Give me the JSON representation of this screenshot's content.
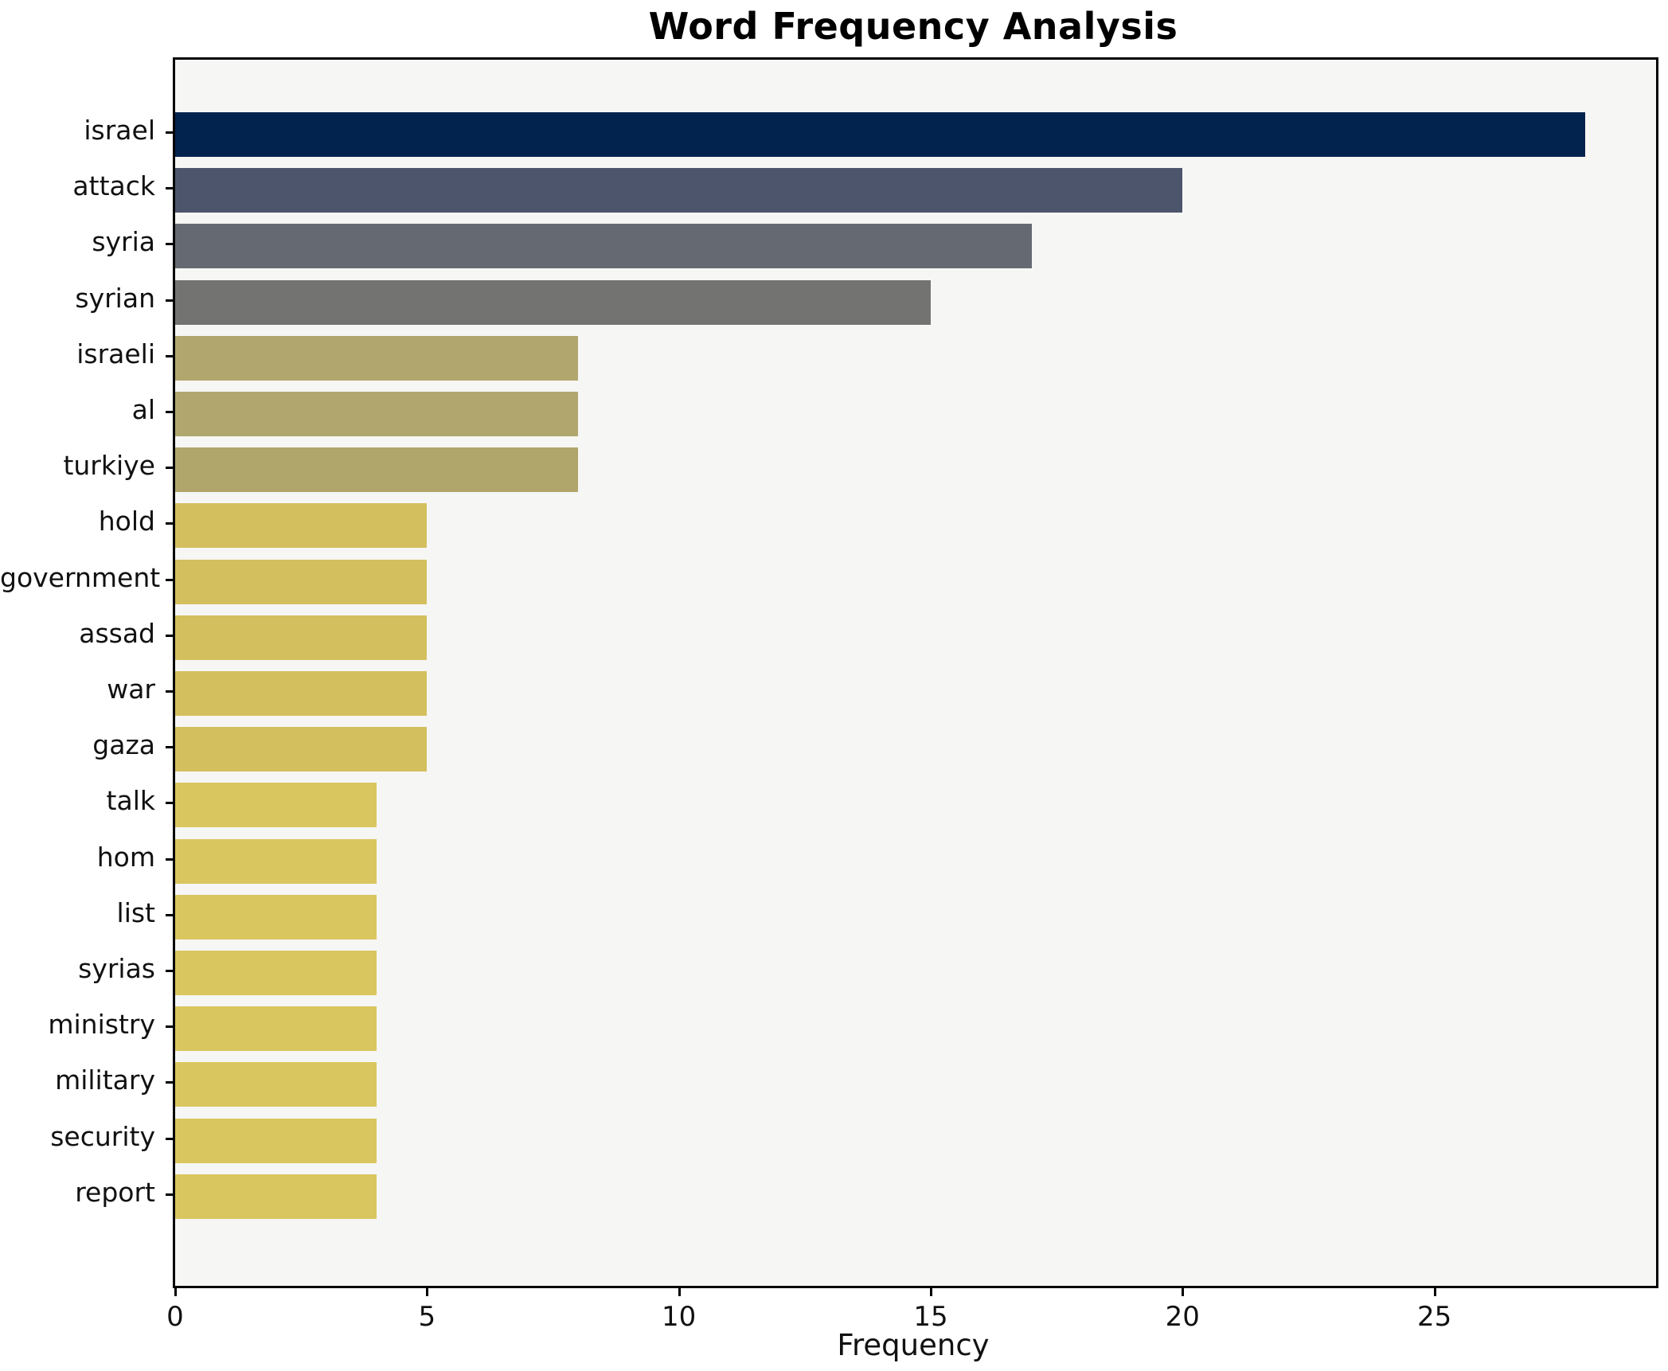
{
  "chart_data": {
    "type": "bar",
    "orientation": "horizontal",
    "title": "Word Frequency Analysis",
    "xlabel": "Frequency",
    "ylabel": "",
    "categories": [
      "israel",
      "attack",
      "syria",
      "syrian",
      "israeli",
      "al",
      "turkiye",
      "hold",
      "government",
      "assad",
      "war",
      "gaza",
      "talk",
      "hom",
      "list",
      "syrias",
      "ministry",
      "military",
      "security",
      "report"
    ],
    "values": [
      28,
      20,
      17,
      15,
      8,
      8,
      8,
      5,
      5,
      5,
      5,
      5,
      4,
      4,
      4,
      4,
      4,
      4,
      4,
      4
    ],
    "bar_colors": [
      "#02234d",
      "#4d556c",
      "#656a72",
      "#737472",
      "#b1a76e",
      "#b1a76e",
      "#b0a66b",
      "#d3bf5e",
      "#d3bf5e",
      "#d3bf5e",
      "#d3bf5e",
      "#d3bf5e",
      "#d9c65f",
      "#d9c65f",
      "#d9c65f",
      "#d9c65f",
      "#d9c65f",
      "#d9c65f",
      "#d9c65f",
      "#d9c65f"
    ],
    "xticks": [
      0,
      5,
      10,
      15,
      20,
      25
    ],
    "xlim": [
      0,
      29.4
    ],
    "grid": false,
    "legend": false,
    "plot_background": "#f6f6f4",
    "figure_background": "#ffffff",
    "axis_color": "#000000"
  }
}
